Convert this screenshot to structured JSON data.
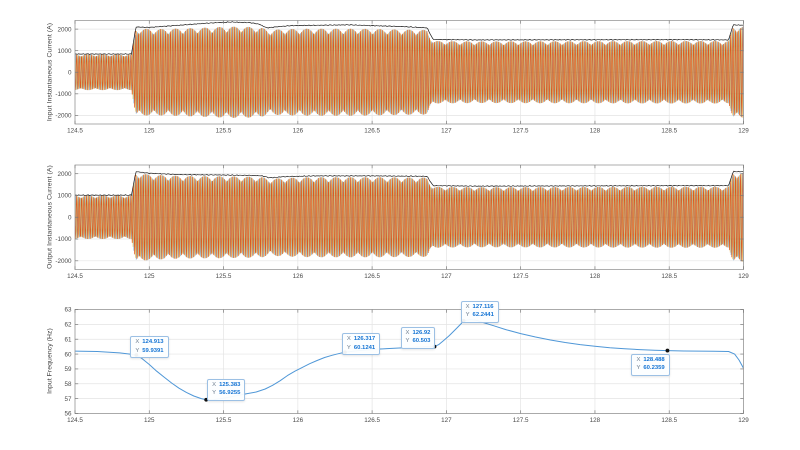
{
  "figure": {
    "bg": "#ffffff",
    "axes_bg": "#ffffff",
    "axis_line_color": "#9a9a9a",
    "tick_mark_color": "#7a7a7a",
    "tick_label_color": "#4a4a4a",
    "grid_color": "#e4e4e4",
    "ylabel_color": "#3c3c3c"
  },
  "chart_data": [
    {
      "type": "line",
      "name": "input-instantaneous-current",
      "title": "",
      "xlabel": "",
      "ylabel": "Input Instantaneous Current (A)",
      "xlim": [
        124.5,
        129
      ],
      "ylim": [
        -2400,
        2400
      ],
      "xticks": [
        124.5,
        125,
        125.5,
        126,
        126.5,
        127,
        127.5,
        128,
        128.5,
        129
      ],
      "xtick_labels": [
        "124.5",
        "125",
        "125.5",
        "126",
        "126.5",
        "127",
        "127.5",
        "128",
        "128.5",
        "129"
      ],
      "yticks": [
        -2000,
        -1000,
        0,
        1000,
        2000
      ],
      "ytick_labels": [
        "-2000",
        "-1000",
        "0",
        "1000",
        "2000"
      ],
      "grid": true,
      "signal": "dense three-phase 60 Hz sinusoidal current; envelope points are [time_s, peak_amplitude_A]",
      "wave_freq_hz": 60.2,
      "phase_colors": [
        "#0072BD",
        "#EDB120",
        "#D95319"
      ],
      "phase_opacities": [
        0.45,
        0.6,
        0.95
      ],
      "peak_trace_color": "#1a1a1a",
      "envelope": [
        [
          124.5,
          830
        ],
        [
          124.88,
          830
        ],
        [
          124.91,
          2020
        ],
        [
          125.05,
          2000
        ],
        [
          125.3,
          2050
        ],
        [
          125.55,
          2120
        ],
        [
          125.7,
          2100
        ],
        [
          125.76,
          2060
        ],
        [
          125.8,
          1950
        ],
        [
          125.9,
          2000
        ],
        [
          126.1,
          2020
        ],
        [
          126.4,
          2020
        ],
        [
          126.7,
          1980
        ],
        [
          126.87,
          1960
        ],
        [
          126.91,
          1450
        ],
        [
          127.2,
          1430
        ],
        [
          128.6,
          1450
        ],
        [
          128.9,
          1450
        ],
        [
          128.93,
          2120
        ],
        [
          129.0,
          2120
        ]
      ],
      "peak_envelope": [
        [
          124.5,
          845
        ],
        [
          124.88,
          845
        ],
        [
          124.91,
          2100
        ],
        [
          125.0,
          2080
        ],
        [
          125.2,
          2180
        ],
        [
          125.4,
          2280
        ],
        [
          125.55,
          2330
        ],
        [
          125.68,
          2300
        ],
        [
          125.74,
          2230
        ],
        [
          125.79,
          2060
        ],
        [
          125.85,
          2100
        ],
        [
          125.95,
          2160
        ],
        [
          126.15,
          2180
        ],
        [
          126.35,
          2200
        ],
        [
          126.5,
          2160
        ],
        [
          126.7,
          2120
        ],
        [
          126.87,
          2060
        ],
        [
          126.91,
          1520
        ],
        [
          127.2,
          1500
        ],
        [
          128.6,
          1510
        ],
        [
          128.9,
          1500
        ],
        [
          128.93,
          2200
        ],
        [
          129.0,
          2180
        ]
      ]
    },
    {
      "type": "line",
      "name": "output-instantaneous-current",
      "title": "",
      "xlabel": "",
      "ylabel": "Output Instantaneous Current (A)",
      "xlim": [
        124.5,
        129
      ],
      "ylim": [
        -2400,
        2400
      ],
      "xticks": [
        124.5,
        125,
        125.5,
        126,
        126.5,
        127,
        127.5,
        128,
        128.5,
        129
      ],
      "xtick_labels": [
        "124.5",
        "125",
        "125.5",
        "126",
        "126.5",
        "127",
        "127.5",
        "128",
        "128.5",
        "129"
      ],
      "yticks": [
        -2000,
        -1000,
        0,
        1000,
        2000
      ],
      "ytick_labels": [
        "-2000",
        "-1000",
        "0",
        "1000",
        "2000"
      ],
      "grid": true,
      "signal": "dense three-phase 60 Hz sinusoidal current; envelope points are [time_s, peak_amplitude_A]",
      "wave_freq_hz": 60.2,
      "phase_colors": [
        "#0072BD",
        "#EDB120",
        "#D95319"
      ],
      "phase_opacities": [
        0.45,
        0.6,
        0.95
      ],
      "peak_trace_color": "#1a1a1a",
      "envelope": [
        [
          124.5,
          1000
        ],
        [
          124.88,
          1000
        ],
        [
          124.91,
          2050
        ],
        [
          125.0,
          1960
        ],
        [
          125.2,
          1900
        ],
        [
          125.5,
          1880
        ],
        [
          125.7,
          1860
        ],
        [
          125.76,
          1840
        ],
        [
          125.81,
          1760
        ],
        [
          125.9,
          1800
        ],
        [
          126.1,
          1840
        ],
        [
          126.5,
          1840
        ],
        [
          126.87,
          1820
        ],
        [
          126.91,
          1400
        ],
        [
          127.2,
          1380
        ],
        [
          128.6,
          1400
        ],
        [
          128.9,
          1400
        ],
        [
          128.93,
          2050
        ],
        [
          129.0,
          2050
        ]
      ],
      "peak_envelope": [
        [
          124.5,
          1015
        ],
        [
          124.88,
          1015
        ],
        [
          124.91,
          2100
        ],
        [
          125.0,
          2020
        ],
        [
          125.2,
          1960
        ],
        [
          125.5,
          1940
        ],
        [
          125.7,
          1920
        ],
        [
          125.76,
          1900
        ],
        [
          125.81,
          1810
        ],
        [
          125.9,
          1860
        ],
        [
          126.1,
          1900
        ],
        [
          126.5,
          1900
        ],
        [
          126.87,
          1880
        ],
        [
          126.91,
          1450
        ],
        [
          127.2,
          1430
        ],
        [
          128.6,
          1450
        ],
        [
          128.9,
          1450
        ],
        [
          128.93,
          2100
        ],
        [
          129.0,
          2090
        ]
      ]
    },
    {
      "type": "line",
      "name": "input-frequency",
      "title": "",
      "xlabel": "",
      "ylabel": "Input Frequency (Hz)",
      "xlim": [
        124.5,
        129
      ],
      "ylim": [
        56,
        63
      ],
      "xticks": [
        124.5,
        125,
        125.5,
        126,
        126.5,
        127,
        127.5,
        128,
        128.5,
        129
      ],
      "xtick_labels": [
        "124.5",
        "125",
        "125.5",
        "126",
        "126.5",
        "127",
        "127.5",
        "128",
        "128.5",
        "129"
      ],
      "yticks": [
        56,
        57,
        58,
        59,
        60,
        61,
        62,
        63
      ],
      "ytick_labels": [
        "56",
        "57",
        "58",
        "59",
        "60",
        "61",
        "62",
        "63"
      ],
      "grid": true,
      "line_color": "#4f97d7",
      "marker_color": "#111111",
      "series": [
        {
          "name": "input-frequency",
          "points": [
            [
              124.5,
              60.2
            ],
            [
              124.65,
              60.17
            ],
            [
              124.8,
              60.08
            ],
            [
              124.87,
              60.0
            ],
            [
              124.913,
              59.9391
            ],
            [
              124.95,
              59.7
            ],
            [
              125.0,
              59.3
            ],
            [
              125.05,
              58.85
            ],
            [
              125.1,
              58.45
            ],
            [
              125.15,
              58.05
            ],
            [
              125.2,
              57.7
            ],
            [
              125.25,
              57.42
            ],
            [
              125.3,
              57.18
            ],
            [
              125.35,
              57.0
            ],
            [
              125.383,
              56.9255
            ],
            [
              125.43,
              56.93
            ],
            [
              125.5,
              57.02
            ],
            [
              125.58,
              57.18
            ],
            [
              125.65,
              57.32
            ],
            [
              125.72,
              57.45
            ],
            [
              125.78,
              57.65
            ],
            [
              125.83,
              57.9
            ],
            [
              125.88,
              58.2
            ],
            [
              125.93,
              58.55
            ],
            [
              125.98,
              58.85
            ],
            [
              126.03,
              59.1
            ],
            [
              126.08,
              59.35
            ],
            [
              126.13,
              59.57
            ],
            [
              126.18,
              59.77
            ],
            [
              126.23,
              59.92
            ],
            [
              126.27,
              60.02
            ],
            [
              126.317,
              60.1241
            ],
            [
              126.4,
              60.22
            ],
            [
              126.5,
              60.3
            ],
            [
              126.6,
              60.37
            ],
            [
              126.75,
              60.44
            ],
            [
              126.85,
              60.48
            ],
            [
              126.92,
              60.503
            ],
            [
              126.95,
              60.65
            ],
            [
              126.98,
              60.9
            ],
            [
              127.02,
              61.25
            ],
            [
              127.06,
              61.65
            ],
            [
              127.1,
              62.05
            ],
            [
              127.116,
              62.2441
            ],
            [
              127.16,
              62.32
            ],
            [
              127.2,
              62.28
            ],
            [
              127.25,
              62.12
            ],
            [
              127.32,
              61.9
            ],
            [
              127.4,
              61.65
            ],
            [
              127.5,
              61.38
            ],
            [
              127.6,
              61.15
            ],
            [
              127.7,
              60.95
            ],
            [
              127.8,
              60.78
            ],
            [
              127.9,
              60.64
            ],
            [
              128.0,
              60.52
            ],
            [
              128.1,
              60.43
            ],
            [
              128.2,
              60.36
            ],
            [
              128.3,
              60.3
            ],
            [
              128.4,
              60.26
            ],
            [
              128.488,
              60.2359
            ],
            [
              128.6,
              60.21
            ],
            [
              128.7,
              60.2
            ],
            [
              128.8,
              60.19
            ],
            [
              128.9,
              60.17
            ],
            [
              128.94,
              60.0
            ],
            [
              128.97,
              59.6
            ],
            [
              129.0,
              59.05
            ]
          ]
        }
      ],
      "datatips": [
        {
          "x_label": "X",
          "y_label": "Y",
          "x_value": "124.913",
          "y_value": "59.9391",
          "point": [
            124.913,
            59.9391
          ],
          "offset": [
            -6,
            -19
          ]
        },
        {
          "x_label": "X",
          "y_label": "Y",
          "x_value": "125.383",
          "y_value": "56.9255",
          "point": [
            125.383,
            56.9255
          ],
          "offset": [
            1,
            -21
          ]
        },
        {
          "x_label": "X",
          "y_label": "Y",
          "x_value": "126.317",
          "y_value": "60.1241",
          "point": [
            126.317,
            60.1241
          ],
          "offset": [
            -3,
            -19
          ]
        },
        {
          "x_label": "X",
          "y_label": "Y",
          "x_value": "126.92",
          "y_value": "60.503",
          "point": [
            126.92,
            60.503
          ],
          "offset": [
            -34,
            -20
          ]
        },
        {
          "x_label": "X",
          "y_label": "Y",
          "x_value": "127.116",
          "y_value": "62.2441",
          "point": [
            127.116,
            62.2441
          ],
          "offset": [
            -3,
            -20
          ]
        },
        {
          "x_label": "X",
          "y_label": "Y",
          "x_value": "128.488",
          "y_value": "60.2359",
          "point": [
            128.488,
            60.2359
          ],
          "offset": [
            -36,
            3
          ]
        }
      ]
    }
  ]
}
